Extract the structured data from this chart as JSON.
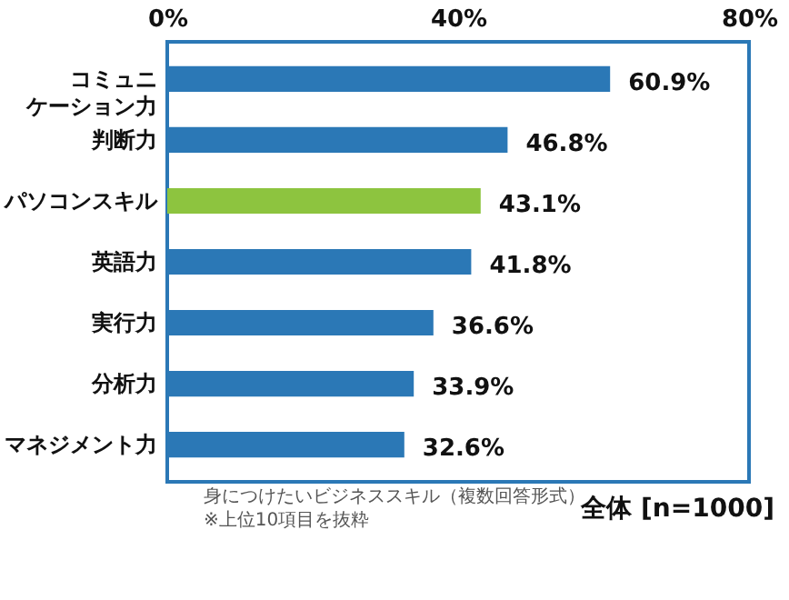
{
  "chart_data": {
    "type": "bar",
    "orientation": "horizontal",
    "categories": [
      "コミュニケーション力",
      "判断力",
      "パソコンスキル",
      "英語力",
      "実行力",
      "分析力",
      "マネジメント力"
    ],
    "values": [
      60.9,
      46.8,
      43.1,
      41.8,
      36.6,
      33.9,
      32.6
    ],
    "colors": [
      "#2b78b6",
      "#2b78b6",
      "#8dc43f",
      "#2b78b6",
      "#2b78b6",
      "#2b78b6",
      "#2b78b6"
    ],
    "value_labels": [
      "60.9%",
      "46.8%",
      "43.1%",
      "41.8%",
      "36.6%",
      "33.9%",
      "32.6%"
    ],
    "xlim": [
      0,
      80
    ],
    "xticks": [
      {
        "value": 0,
        "label": "0%"
      },
      {
        "value": 40,
        "label": "40%"
      },
      {
        "value": 80,
        "label": "80%"
      }
    ],
    "grid": false,
    "annotations": [
      "身につけたいビジネススキル（複数回答形式）",
      "※上位10項目を抜粋",
      "全体 [n=1000]"
    ]
  }
}
